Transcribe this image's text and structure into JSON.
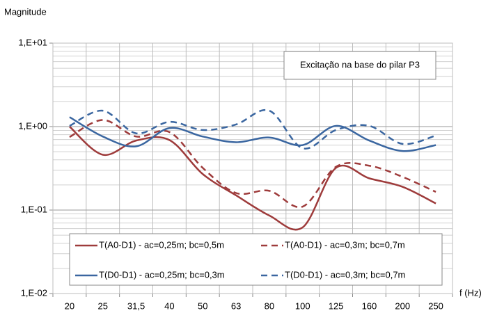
{
  "chart_data": {
    "type": "line",
    "y_label": "Magnitude",
    "x_label": "f (Hz)",
    "annotation": "Excitação na base do pilar P3",
    "categories": [
      "20",
      "25",
      "31,5",
      "40",
      "50",
      "63",
      "80",
      "100",
      "125",
      "160",
      "200",
      "250"
    ],
    "log_y": true,
    "grid": true,
    "legend": "bottom",
    "ylim": [
      0.01,
      10
    ],
    "yticks": [
      {
        "value": 0.01,
        "label": "1,E-02"
      },
      {
        "value": 0.1,
        "label": "1,E-01"
      },
      {
        "value": 1,
        "label": "1,E+00"
      },
      {
        "value": 10,
        "label": "1,E+01"
      }
    ],
    "series": [
      {
        "name": "T(A0-D1) - ac=0,25m; bc=0,5m",
        "color": "#9e3b3b",
        "dash": false,
        "values": [
          1.0,
          0.46,
          0.68,
          0.69,
          0.27,
          0.15,
          0.086,
          0.062,
          0.32,
          0.24,
          0.19,
          0.12
        ]
      },
      {
        "name": "T(A0-D1) - ac=0,3m; bc=0,7m",
        "color": "#9e3b3b",
        "dash": true,
        "values": [
          0.75,
          1.2,
          0.76,
          0.86,
          0.32,
          0.16,
          0.17,
          0.11,
          0.33,
          0.34,
          0.25,
          0.165
        ]
      },
      {
        "name": "T(D0-D1) - ac=0,25m; bc=0,3m",
        "color": "#3a66a0",
        "dash": false,
        "values": [
          1.3,
          0.76,
          0.58,
          0.96,
          0.76,
          0.65,
          0.74,
          0.6,
          1.02,
          0.68,
          0.51,
          0.6
        ]
      },
      {
        "name": "T(D0-D1) - ac=0,3m; bc=0,7m",
        "color": "#3a66a0",
        "dash": true,
        "values": [
          1.02,
          1.55,
          0.83,
          1.14,
          0.91,
          1.06,
          1.55,
          0.55,
          0.91,
          1.02,
          0.62,
          0.78
        ]
      }
    ]
  }
}
